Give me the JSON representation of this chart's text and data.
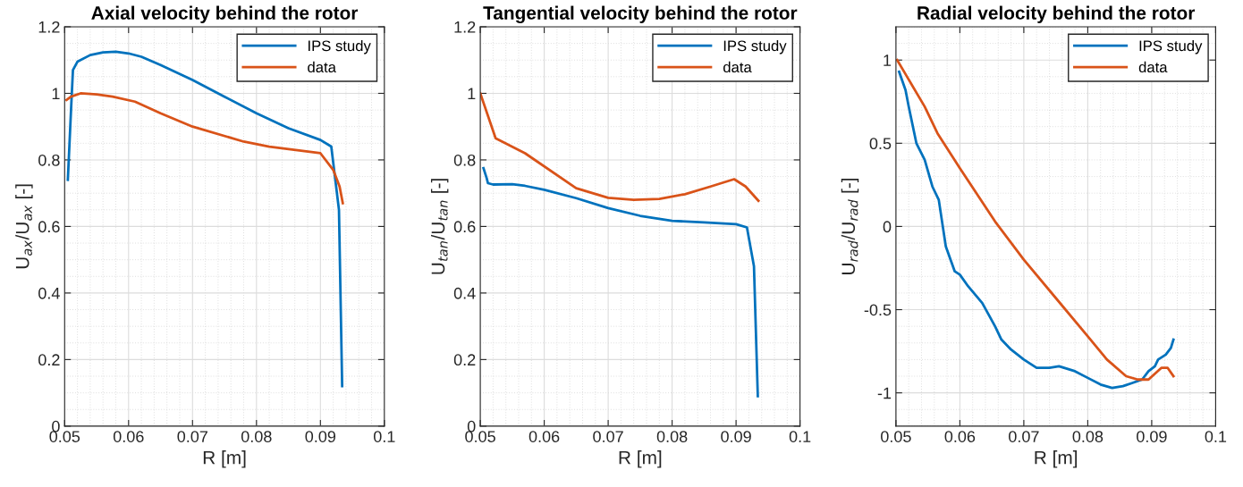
{
  "chart_data": [
    {
      "type": "line",
      "title": "Axial velocity behind the rotor",
      "xlabel": "R [m]",
      "ylabel": "U$_{ax}$/U$_{ax}$ [-]",
      "xlim": [
        0.05,
        0.1
      ],
      "xticks": [
        0.05,
        0.06,
        0.07,
        0.08,
        0.09,
        0.1
      ],
      "ylim": [
        0,
        1.2
      ],
      "yticks": [
        0,
        0.2,
        0.4,
        0.6,
        0.8,
        1,
        1.2
      ],
      "grid": true,
      "legend": "top right",
      "series": [
        {
          "name": "IPS study",
          "color": "#0072bd",
          "x": [
            0.0505,
            0.051,
            0.0513,
            0.052,
            0.054,
            0.056,
            0.058,
            0.06,
            0.062,
            0.065,
            0.07,
            0.075,
            0.08,
            0.085,
            0.09,
            0.0917,
            0.0929,
            0.0934
          ],
          "values": [
            0.74,
            0.95,
            1.07,
            1.095,
            1.115,
            1.123,
            1.125,
            1.12,
            1.11,
            1.085,
            1.04,
            0.99,
            0.94,
            0.895,
            0.86,
            0.84,
            0.65,
            0.12
          ]
        },
        {
          "name": "data",
          "color": "#d95319",
          "x": [
            0.0503,
            0.051,
            0.0525,
            0.055,
            0.0575,
            0.061,
            0.065,
            0.07,
            0.078,
            0.082,
            0.09,
            0.092,
            0.093,
            0.0935
          ],
          "values": [
            0.98,
            0.99,
            1.0,
            0.997,
            0.99,
            0.975,
            0.94,
            0.9,
            0.855,
            0.84,
            0.82,
            0.77,
            0.72,
            0.67
          ]
        }
      ]
    },
    {
      "type": "line",
      "title": "Tangential velocity behind the rotor",
      "xlabel": "R [m]",
      "ylabel": "U$_{tan}$/U$_{tan}$ [-]",
      "xlim": [
        0.05,
        0.1
      ],
      "xticks": [
        0.05,
        0.06,
        0.07,
        0.08,
        0.09,
        0.1
      ],
      "ylim": [
        0,
        1.2
      ],
      "yticks": [
        0,
        0.2,
        0.4,
        0.6,
        0.8,
        1,
        1.2
      ],
      "grid": true,
      "legend": "top right",
      "series": [
        {
          "name": "IPS study",
          "color": "#0072bd",
          "x": [
            0.0505,
            0.051,
            0.0512,
            0.052,
            0.055,
            0.057,
            0.06,
            0.065,
            0.07,
            0.075,
            0.08,
            0.085,
            0.09,
            0.0917,
            0.0928,
            0.0934
          ],
          "values": [
            0.775,
            0.745,
            0.73,
            0.726,
            0.727,
            0.722,
            0.71,
            0.685,
            0.655,
            0.632,
            0.617,
            0.612,
            0.607,
            0.597,
            0.48,
            0.09
          ]
        },
        {
          "name": "data",
          "color": "#d95319",
          "x": [
            0.05,
            0.0524,
            0.057,
            0.065,
            0.07,
            0.074,
            0.078,
            0.082,
            0.086,
            0.0897,
            0.0915,
            0.0935
          ],
          "values": [
            1.0,
            0.865,
            0.82,
            0.715,
            0.686,
            0.68,
            0.683,
            0.697,
            0.72,
            0.742,
            0.72,
            0.677
          ]
        }
      ]
    },
    {
      "type": "line",
      "title": "Radial velocity behind the rotor",
      "xlabel": "R [m]",
      "ylabel": "U$_{rad}$/U$_{rad}$ [-]",
      "xlim": [
        0.05,
        0.1
      ],
      "xticks": [
        0.05,
        0.06,
        0.07,
        0.08,
        0.09,
        0.1
      ],
      "ylim": [
        -1.2,
        1.2
      ],
      "yticks": [
        -1,
        -0.5,
        0,
        0.5,
        1
      ],
      "grid": true,
      "legend": "top right",
      "series": [
        {
          "name": "IPS study",
          "color": "#0072bd",
          "x": [
            0.0505,
            0.0515,
            0.052,
            0.0532,
            0.0545,
            0.0557,
            0.0567,
            0.0578,
            0.0592,
            0.06,
            0.0613,
            0.0635,
            0.0655,
            0.0665,
            0.068,
            0.07,
            0.072,
            0.074,
            0.0755,
            0.078,
            0.08,
            0.082,
            0.0838,
            0.0855,
            0.087,
            0.0885,
            0.0895,
            0.0905,
            0.091,
            0.0922,
            0.093,
            0.0934
          ],
          "values": [
            0.93,
            0.82,
            0.72,
            0.5,
            0.4,
            0.24,
            0.16,
            -0.12,
            -0.27,
            -0.29,
            -0.36,
            -0.46,
            -0.6,
            -0.68,
            -0.74,
            -0.8,
            -0.85,
            -0.85,
            -0.84,
            -0.87,
            -0.91,
            -0.95,
            -0.97,
            -0.96,
            -0.94,
            -0.92,
            -0.87,
            -0.84,
            -0.8,
            -0.77,
            -0.73,
            -0.68
          ]
        },
        {
          "name": "data",
          "color": "#d95319",
          "x": [
            0.0502,
            0.0545,
            0.0565,
            0.06,
            0.0655,
            0.07,
            0.075,
            0.08,
            0.083,
            0.086,
            0.0878,
            0.0895,
            0.0915,
            0.0925,
            0.0934
          ],
          "values": [
            1.0,
            0.72,
            0.56,
            0.35,
            0.03,
            -0.2,
            -0.43,
            -0.66,
            -0.8,
            -0.9,
            -0.92,
            -0.92,
            -0.85,
            -0.85,
            -0.9
          ]
        }
      ]
    }
  ]
}
